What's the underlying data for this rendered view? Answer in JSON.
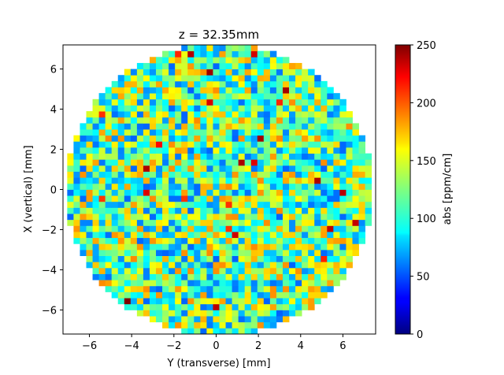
{
  "chart_data": {
    "type": "heatmap",
    "title": "z = 32.35mm",
    "xlabel": "Y (transverse) [mm]",
    "ylabel": "X (vertical) [mm]",
    "xlim": [
      -7.25,
      7.55
    ],
    "ylim": [
      -7.2,
      7.2
    ],
    "xticks": [
      -6,
      -4,
      -2,
      0,
      2,
      4,
      6
    ],
    "yticks": [
      -6,
      -4,
      -2,
      0,
      2,
      4,
      6
    ],
    "xtick_labels": [
      "−6",
      "−4",
      "−2",
      "0",
      "2",
      "4",
      "6"
    ],
    "ytick_labels": [
      "−6",
      "−4",
      "−2",
      "0",
      "2",
      "4",
      "6"
    ],
    "grid": false,
    "colormap": "jet",
    "colorbar": {
      "label": "abs [ppm/cm]",
      "min": 0,
      "max": 250,
      "ticks": [
        0,
        50,
        100,
        150,
        200,
        250
      ],
      "tick_labels": [
        "0",
        "50",
        "100",
        "150",
        "200",
        "250"
      ]
    },
    "field": {
      "shape": "circle",
      "center": [
        0.15,
        0
      ],
      "radius_mm": 7.3,
      "cell_size_mm": 0.3,
      "seed": 32,
      "value_model": "uniform_random",
      "value_range": [
        55,
        185
      ],
      "hot_cell_probability": 0.015,
      "hot_cell_range": [
        205,
        250
      ]
    }
  }
}
